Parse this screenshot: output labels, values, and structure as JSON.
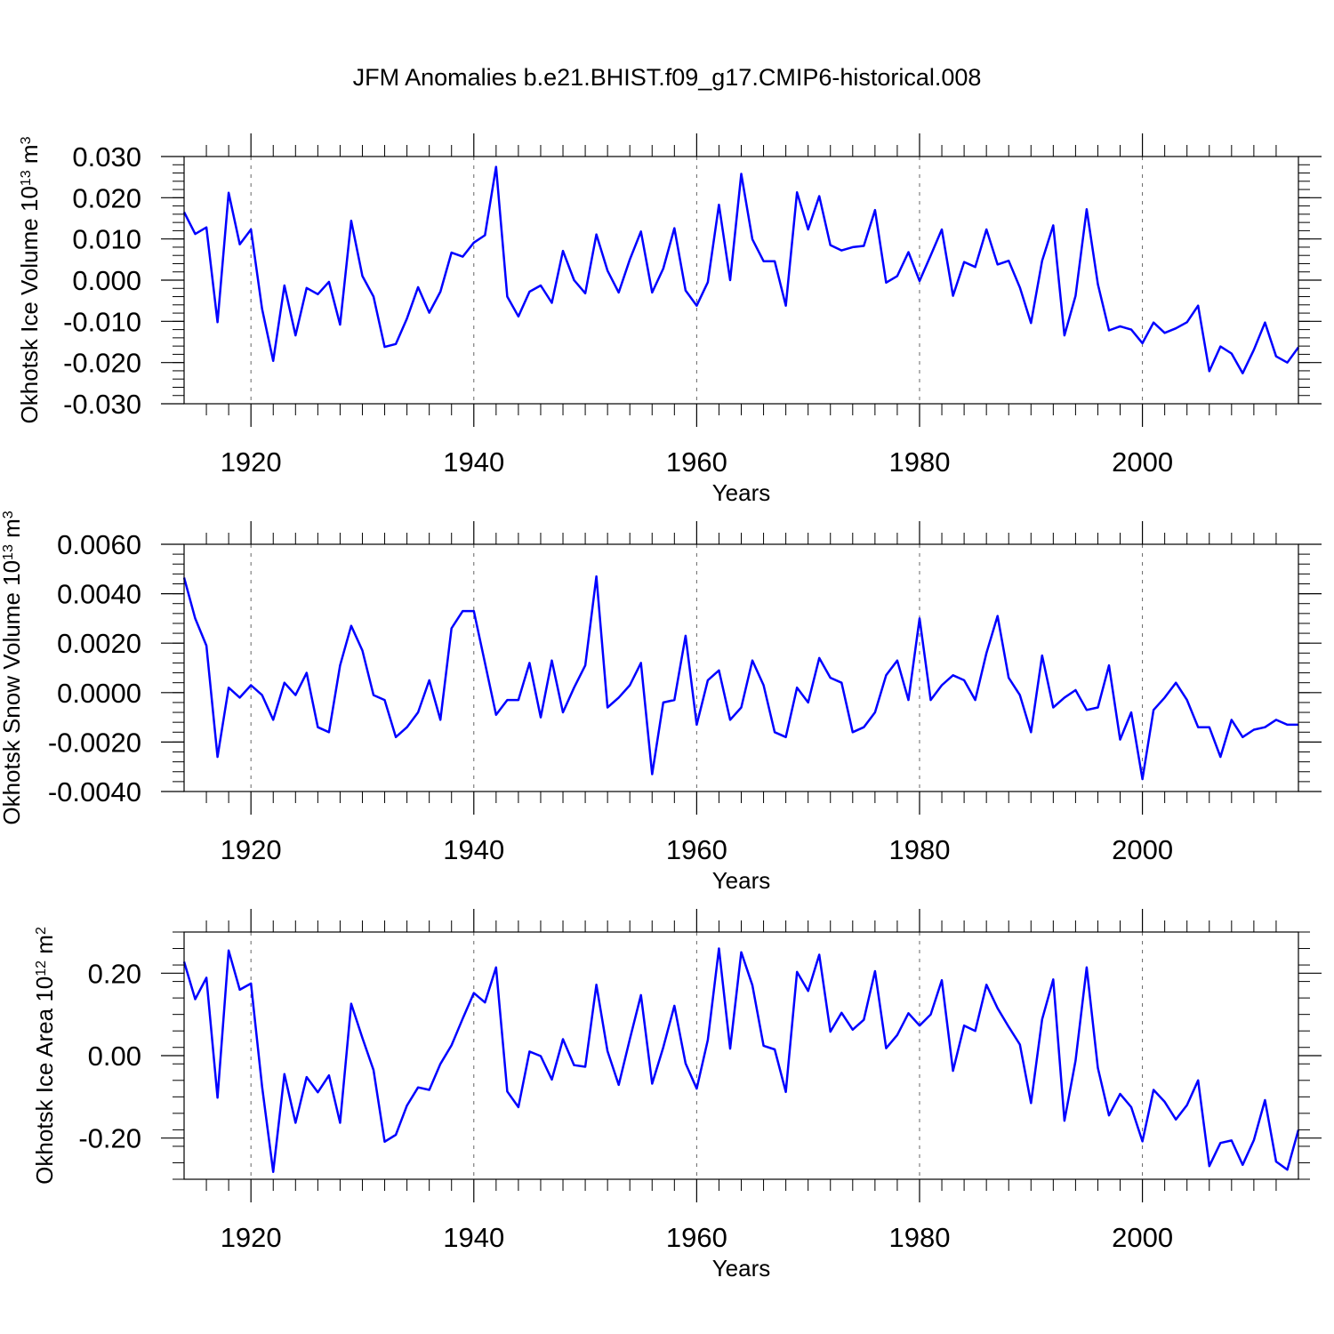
{
  "title": "JFM Anomalies b.e21.BHIST.f09_g17.CMIP6-historical.008",
  "chart_data": [
    {
      "type": "line",
      "title": "JFM Anomalies b.e21.BHIST.f09_g17.CMIP6-historical.008",
      "xlabel": "Years",
      "ylabel": "Okhotsk Ice Volume 10",
      "ylabel_exp": "13",
      "ylabel_unit": " m",
      "ylabel_unit_exp": "3",
      "xlim": [
        1914,
        2014
      ],
      "ylim": [
        -0.03,
        0.03
      ],
      "yticks": [
        -0.03,
        -0.02,
        -0.01,
        0.0,
        0.01,
        0.02,
        0.03
      ],
      "ytick_labels": [
        "-0.030",
        "-0.020",
        "-0.010",
        "0.000",
        "0.010",
        "0.020",
        "0.030"
      ],
      "xticks": [
        1920,
        1940,
        1960,
        1980,
        2000
      ],
      "xtick_labels": [
        "1920",
        "1940",
        "1960",
        "1980",
        "2000"
      ],
      "color": "#0000ff",
      "x_start": 1914,
      "values": [
        0.0165,
        0.0112,
        0.0128,
        -0.0102,
        0.0212,
        0.0087,
        0.0123,
        -0.007,
        -0.0196,
        -0.0013,
        -0.0134,
        -0.0019,
        -0.0034,
        -0.0004,
        -0.0108,
        0.0144,
        0.001,
        -0.004,
        -0.0162,
        -0.0155,
        -0.0093,
        -0.0017,
        -0.0079,
        -0.0028,
        0.0067,
        0.0057,
        0.0091,
        0.0109,
        0.0275,
        -0.004,
        -0.0088,
        -0.0028,
        -0.0013,
        -0.0055,
        0.0071,
        0.0,
        -0.0032,
        0.0111,
        0.0023,
        -0.003,
        0.005,
        0.0118,
        -0.003,
        0.0028,
        0.0126,
        -0.0025,
        -0.0062,
        -0.0005,
        0.0183,
        0.0,
        0.0258,
        0.0099,
        0.0046,
        0.0046,
        -0.0062,
        0.0213,
        0.0123,
        0.0204,
        0.0085,
        0.0072,
        0.008,
        0.0083,
        0.017,
        -0.0006,
        0.001,
        0.0068,
        -0.0002,
        0.006,
        0.0123,
        -0.0038,
        0.0044,
        0.0032,
        0.0123,
        0.0038,
        0.0047,
        -0.0018,
        -0.0104,
        0.0047,
        0.0133,
        -0.0134,
        -0.0038,
        0.0172,
        -0.001,
        -0.0122,
        -0.0112,
        -0.012,
        -0.0153,
        -0.0103,
        -0.0128,
        -0.0117,
        -0.0102,
        -0.0062,
        -0.0221,
        -0.0161,
        -0.0178,
        -0.0226,
        -0.0169,
        -0.0103,
        -0.0185,
        -0.02,
        -0.0163
      ]
    },
    {
      "type": "line",
      "xlabel": "Years",
      "ylabel": "Okhotsk Snow Volume 10",
      "ylabel_exp": "13",
      "ylabel_unit": " m",
      "ylabel_unit_exp": "3",
      "xlim": [
        1914,
        2014
      ],
      "ylim": [
        -0.004,
        0.006
      ],
      "yticks": [
        -0.004,
        -0.002,
        0.0,
        0.002,
        0.004,
        0.006
      ],
      "ytick_labels": [
        "-0.0040",
        "-0.0020",
        "0.0000",
        "0.0020",
        "0.0040",
        "0.0060"
      ],
      "xticks": [
        1920,
        1940,
        1960,
        1980,
        2000
      ],
      "xtick_labels": [
        "1920",
        "1940",
        "1960",
        "1980",
        "2000"
      ],
      "color": "#0000ff",
      "x_start": 1914,
      "values": [
        0.00465,
        0.003,
        0.0019,
        -0.0026,
        0.0002,
        -0.0002,
        0.0003,
        -0.0001,
        -0.0011,
        0.0004,
        -0.0001,
        0.0008,
        -0.0014,
        -0.0016,
        0.0011,
        0.0027,
        0.0017,
        -0.0001,
        -0.0003,
        -0.0018,
        -0.0014,
        -0.0008,
        0.0005,
        -0.0011,
        0.0026,
        0.0033,
        0.0033,
        0.0012,
        -0.0009,
        -0.0003,
        -0.0003,
        0.0012,
        -0.001,
        0.0013,
        -0.0008,
        0.0002,
        0.0011,
        0.0047,
        -0.0006,
        -0.0002,
        0.0003,
        0.0012,
        -0.0033,
        -0.0004,
        -0.0003,
        0.0023,
        -0.0013,
        0.0005,
        0.0009,
        -0.0011,
        -0.0006,
        0.0013,
        0.0003,
        -0.0016,
        -0.0018,
        0.0002,
        -0.0004,
        0.0014,
        0.0006,
        0.0004,
        -0.0016,
        -0.0014,
        -0.0008,
        0.0007,
        0.0013,
        -0.0003,
        0.003,
        -0.0003,
        0.0003,
        0.0007,
        0.0005,
        -0.0003,
        0.0016,
        0.0031,
        0.0006,
        -0.0001,
        -0.0016,
        0.0015,
        -0.0006,
        -0.0002,
        0.0001,
        -0.0007,
        -0.0006,
        0.0011,
        -0.0019,
        -0.0008,
        -0.0035,
        -0.0007,
        -0.0002,
        0.0004,
        -0.0003,
        -0.0014,
        -0.0014,
        -0.0026,
        -0.0011,
        -0.0018,
        -0.0015,
        -0.0014,
        -0.0011,
        -0.0013,
        -0.0013
      ]
    },
    {
      "type": "line",
      "xlabel": "Years",
      "ylabel": "Okhotsk Ice Area 10",
      "ylabel_exp": "12",
      "ylabel_unit": " m",
      "ylabel_unit_exp": "2",
      "xlim": [
        1914,
        2014
      ],
      "ylim": [
        -0.3,
        0.3
      ],
      "yticks": [
        -0.2,
        0.0,
        0.2
      ],
      "ytick_labels": [
        "-0.20",
        "0.00",
        "0.20"
      ],
      "xticks": [
        1920,
        1940,
        1960,
        1980,
        2000
      ],
      "xtick_labels": [
        "1920",
        "1940",
        "1960",
        "1980",
        "2000"
      ],
      "color": "#0000ff",
      "x_start": 1914,
      "values": [
        0.228,
        0.137,
        0.189,
        -0.102,
        0.255,
        0.16,
        0.175,
        -0.075,
        -0.282,
        -0.045,
        -0.163,
        -0.052,
        -0.089,
        -0.048,
        -0.163,
        0.126,
        0.043,
        -0.035,
        -0.209,
        -0.192,
        -0.121,
        -0.077,
        -0.083,
        -0.02,
        0.025,
        0.09,
        0.152,
        0.129,
        0.214,
        -0.087,
        -0.125,
        0.01,
        -0.001,
        -0.058,
        0.04,
        -0.023,
        -0.027,
        0.172,
        0.011,
        -0.071,
        0.04,
        0.147,
        -0.068,
        0.02,
        0.121,
        -0.019,
        -0.08,
        0.038,
        0.26,
        0.017,
        0.251,
        0.171,
        0.024,
        0.015,
        -0.088,
        0.203,
        0.157,
        0.245,
        0.058,
        0.104,
        0.063,
        0.087,
        0.205,
        0.018,
        0.05,
        0.103,
        0.073,
        0.1,
        0.183,
        -0.037,
        0.073,
        0.06,
        0.172,
        0.115,
        0.07,
        0.027,
        -0.115,
        0.088,
        0.185,
        -0.158,
        -0.012,
        0.214,
        -0.03,
        -0.145,
        -0.093,
        -0.125,
        -0.208,
        -0.083,
        -0.112,
        -0.155,
        -0.12,
        -0.06,
        -0.268,
        -0.212,
        -0.206,
        -0.265,
        -0.205,
        -0.108,
        -0.257,
        -0.277,
        -0.18
      ]
    }
  ]
}
